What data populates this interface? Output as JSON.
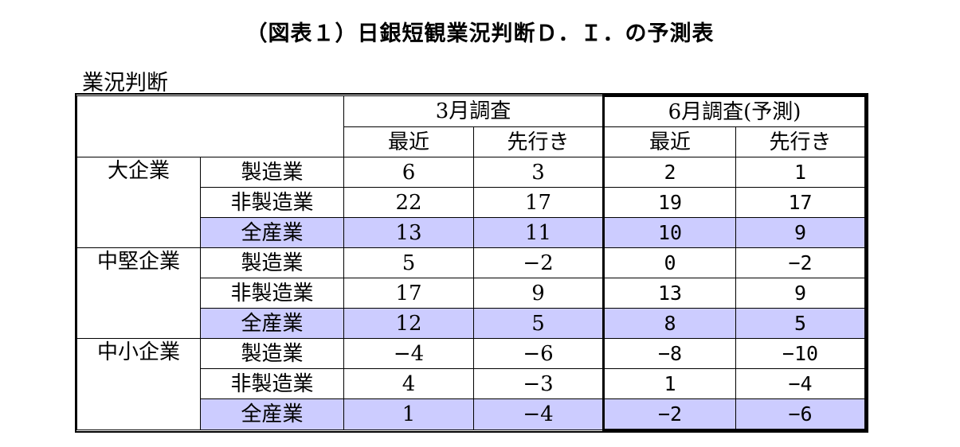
{
  "title": "（図表１）日銀短観業況判断Ｄ．Ｉ．の予測表",
  "subtitle": "業況判断",
  "header": {
    "survey_march": "3月調査",
    "survey_june": "6月調査(予測)",
    "recent": "最近",
    "outlook": "先行き"
  },
  "groups": [
    {
      "name": "大企業",
      "rows": [
        {
          "label": "製造業",
          "values": [
            "6",
            "3",
            "2",
            "1"
          ]
        },
        {
          "label": "非製造業",
          "values": [
            "22",
            "17",
            "19",
            "17"
          ]
        },
        {
          "label": "全産業",
          "values": [
            "13",
            "11",
            "10",
            "9"
          ]
        }
      ]
    },
    {
      "name": "中堅企業",
      "rows": [
        {
          "label": "製造業",
          "values": [
            "5",
            "−2",
            "0",
            "−2"
          ]
        },
        {
          "label": "非製造業",
          "values": [
            "17",
            "9",
            "13",
            "9"
          ]
        },
        {
          "label": "全産業",
          "values": [
            "12",
            "5",
            "8",
            "5"
          ]
        }
      ]
    },
    {
      "name": "中小企業",
      "rows": [
        {
          "label": "製造業",
          "values": [
            "−4",
            "−6",
            "−8",
            "−10"
          ]
        },
        {
          "label": "非製造業",
          "values": [
            "4",
            "−3",
            "1",
            "−4"
          ]
        },
        {
          "label": "全産業",
          "values": [
            "1",
            "−4",
            "−2",
            "−6"
          ]
        }
      ]
    }
  ],
  "colors": {
    "shade": "#ccccff"
  }
}
